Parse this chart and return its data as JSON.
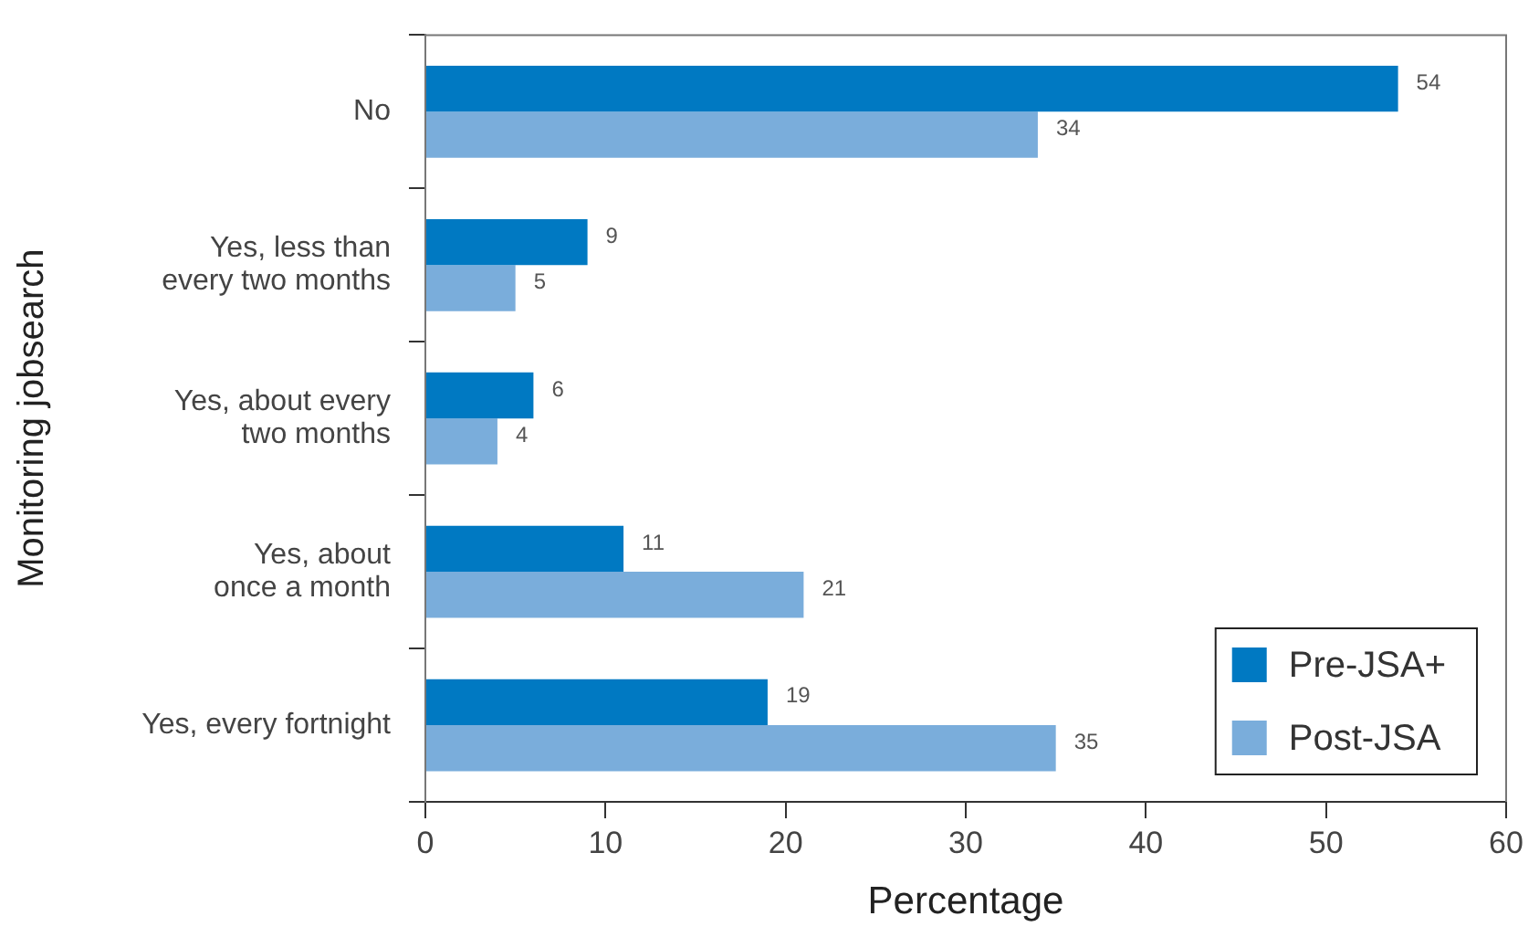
{
  "chart_data": {
    "type": "bar",
    "orientation": "horizontal",
    "categories": [
      "No",
      "Yes, less than\nevery two months",
      "Yes, about every\ntwo months",
      "Yes, about\nonce a month",
      "Yes, every fortnight"
    ],
    "series": [
      {
        "name": "Pre-JSA+",
        "color": "#0079c2",
        "values": [
          54,
          9,
          6,
          11,
          19
        ]
      },
      {
        "name": "Post-JSA",
        "color": "#7aaddb",
        "values": [
          34,
          5,
          4,
          21,
          35
        ]
      }
    ],
    "xlabel": "Percentage",
    "ylabel": "Monitoring jobsearch",
    "xlim": [
      0,
      60
    ],
    "xticks": [
      0,
      10,
      20,
      30,
      40,
      50,
      60
    ],
    "data_labels": true,
    "grid": false,
    "legend": "bottom right"
  }
}
